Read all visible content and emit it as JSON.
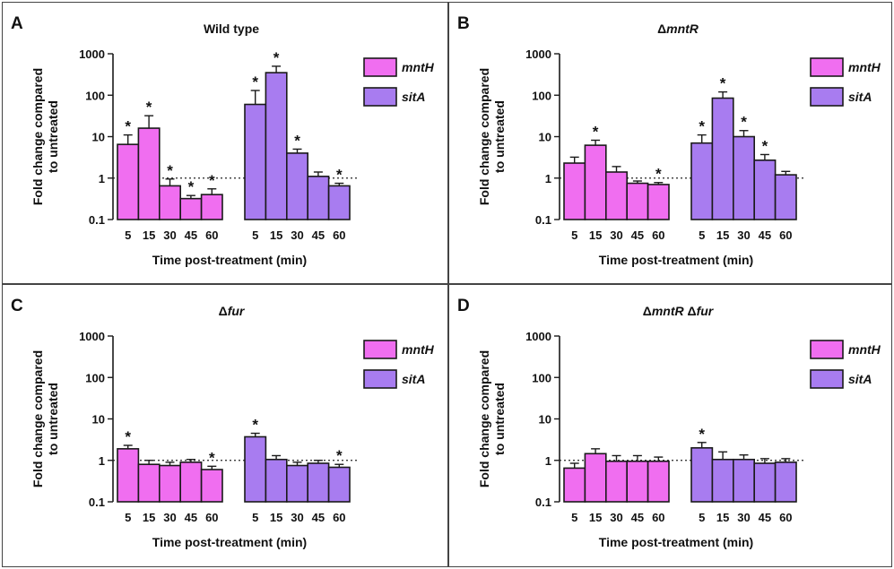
{
  "chart_data": [
    {
      "panel_letter": "A",
      "title": "Wild type",
      "type": "bar",
      "ylabel": [
        "Fold change compared",
        "to untreated"
      ],
      "xlabel": "Time post-treatment (min)",
      "y_scale": "log",
      "ylim": [
        0.1,
        1000
      ],
      "y_ticks": [
        "0.1",
        "1",
        "10",
        "100",
        "1000"
      ],
      "reference_line": 1,
      "categories": [
        "5",
        "15",
        "30",
        "45",
        "60"
      ],
      "legend_position": "right",
      "series": [
        {
          "name": "mntH",
          "color": "#f06ef0",
          "values": [
            6.5,
            16,
            0.65,
            0.32,
            0.4
          ],
          "error": [
            11,
            32,
            0.95,
            0.38,
            0.55
          ],
          "significant": [
            true,
            true,
            true,
            true,
            true
          ]
        },
        {
          "name": "sitA",
          "color": "#a87cf0",
          "values": [
            60,
            350,
            4,
            1.1,
            0.65
          ],
          "error": [
            130,
            500,
            5,
            1.4,
            0.75
          ],
          "significant": [
            true,
            true,
            true,
            false,
            true
          ]
        }
      ]
    },
    {
      "panel_letter": "B",
      "title": "ΔmntR",
      "type": "bar",
      "ylabel": [
        "Fold change compared",
        "to untreated"
      ],
      "xlabel": "Time post-treatment (min)",
      "y_scale": "log",
      "ylim": [
        0.1,
        1000
      ],
      "y_ticks": [
        "0.1",
        "1",
        "10",
        "100",
        "1000"
      ],
      "reference_line": 1,
      "categories": [
        "5",
        "15",
        "30",
        "45",
        "60"
      ],
      "legend_position": "right",
      "series": [
        {
          "name": "mntH",
          "color": "#f06ef0",
          "values": [
            2.3,
            6.2,
            1.4,
            0.75,
            0.7
          ],
          "error": [
            3.2,
            8.2,
            1.9,
            0.85,
            0.78
          ],
          "significant": [
            false,
            true,
            false,
            false,
            true
          ]
        },
        {
          "name": "sitA",
          "color": "#a87cf0",
          "values": [
            7,
            85,
            10,
            2.7,
            1.2
          ],
          "error": [
            11,
            120,
            14,
            3.7,
            1.45
          ],
          "significant": [
            true,
            true,
            true,
            true,
            false
          ]
        }
      ]
    },
    {
      "panel_letter": "C",
      "title": "Δfur",
      "type": "bar",
      "ylabel": [
        "Fold change compared",
        "to untreated"
      ],
      "xlabel": "Time post-treatment (min)",
      "y_scale": "log",
      "ylim": [
        0.1,
        1000
      ],
      "y_ticks": [
        "0.1",
        "1",
        "10",
        "100",
        "1000"
      ],
      "reference_line": 1,
      "categories": [
        "5",
        "15",
        "30",
        "45",
        "60"
      ],
      "legend_position": "right",
      "series": [
        {
          "name": "mntH",
          "color": "#f06ef0",
          "values": [
            1.9,
            0.8,
            0.75,
            0.9,
            0.6
          ],
          "error": [
            2.3,
            1.0,
            0.9,
            1.05,
            0.72
          ],
          "significant": [
            true,
            false,
            false,
            false,
            true
          ]
        },
        {
          "name": "sitA",
          "color": "#a87cf0",
          "values": [
            3.7,
            1.05,
            0.75,
            0.85,
            0.68
          ],
          "error": [
            4.5,
            1.3,
            0.9,
            1.0,
            0.8
          ],
          "significant": [
            true,
            false,
            false,
            false,
            true
          ]
        }
      ]
    },
    {
      "panel_letter": "D",
      "title": "ΔmntR Δfur",
      "type": "bar",
      "ylabel": [
        "Fold change compared",
        "to untreated"
      ],
      "xlabel": "Time post-treatment (min)",
      "y_scale": "log",
      "ylim": [
        0.1,
        1000
      ],
      "y_ticks": [
        "0.1",
        "1",
        "10",
        "100",
        "1000"
      ],
      "reference_line": 1,
      "categories": [
        "5",
        "15",
        "30",
        "45",
        "60"
      ],
      "legend_position": "right",
      "series": [
        {
          "name": "mntH",
          "color": "#f06ef0",
          "values": [
            0.65,
            1.45,
            0.95,
            0.95,
            0.95
          ],
          "error": [
            0.85,
            1.9,
            1.3,
            1.3,
            1.2
          ],
          "significant": [
            false,
            false,
            false,
            false,
            false
          ]
        },
        {
          "name": "sitA",
          "color": "#a87cf0",
          "values": [
            2.0,
            1.05,
            1.05,
            0.85,
            0.9
          ],
          "error": [
            2.7,
            1.6,
            1.35,
            1.1,
            1.1
          ],
          "significant": [
            true,
            false,
            false,
            false,
            false
          ]
        }
      ]
    }
  ]
}
